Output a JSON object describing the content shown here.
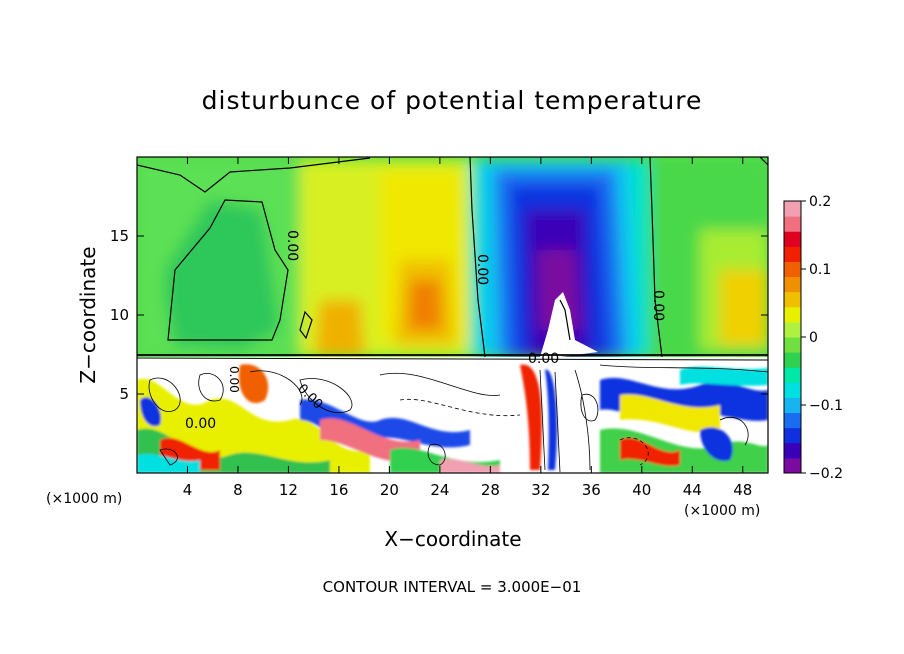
{
  "chart_data": {
    "type": "heatmap",
    "title": "disturbunce of potential temperature",
    "xlabel": "X−coordinate",
    "ylabel": "Z−coordinate",
    "x_unit_left": "(×1000 m)",
    "x_unit_right": "(×1000 m)",
    "footer": "CONTOUR INTERVAL = 3.000E−01",
    "xlim": [
      0,
      50
    ],
    "ylim": [
      0,
      20
    ],
    "x_ticks": [
      "4",
      "8",
      "12",
      "16",
      "20",
      "24",
      "28",
      "32",
      "36",
      "40",
      "44",
      "48"
    ],
    "y_ticks": [
      "5",
      "10",
      "15"
    ],
    "colorbar": {
      "range": [
        -0.2,
        0.2
      ],
      "tick_labels": [
        "0.2",
        "0.1",
        "0",
        "−0.1",
        "−0.2"
      ],
      "tick_values": [
        0.2,
        0.1,
        0,
        -0.1,
        -0.2
      ],
      "colors": [
        "#7a0aa0",
        "#3a00b8",
        "#1030e0",
        "#1a6cf0",
        "#18b4f0",
        "#00e0e0",
        "#00e8a8",
        "#30d050",
        "#70e040",
        "#b0f040",
        "#e8f000",
        "#f0c000",
        "#f09000",
        "#f06000",
        "#f02000",
        "#e00020",
        "#f07080",
        "#f0a0b0"
      ]
    },
    "contour_labels": [
      "0.00",
      "0.00",
      "0.00",
      "0.00",
      "0.00",
      "0.00",
      "0.00"
    ],
    "description_note": "upper layer (z>7.5) smooth field; lower layer turbulent"
  }
}
